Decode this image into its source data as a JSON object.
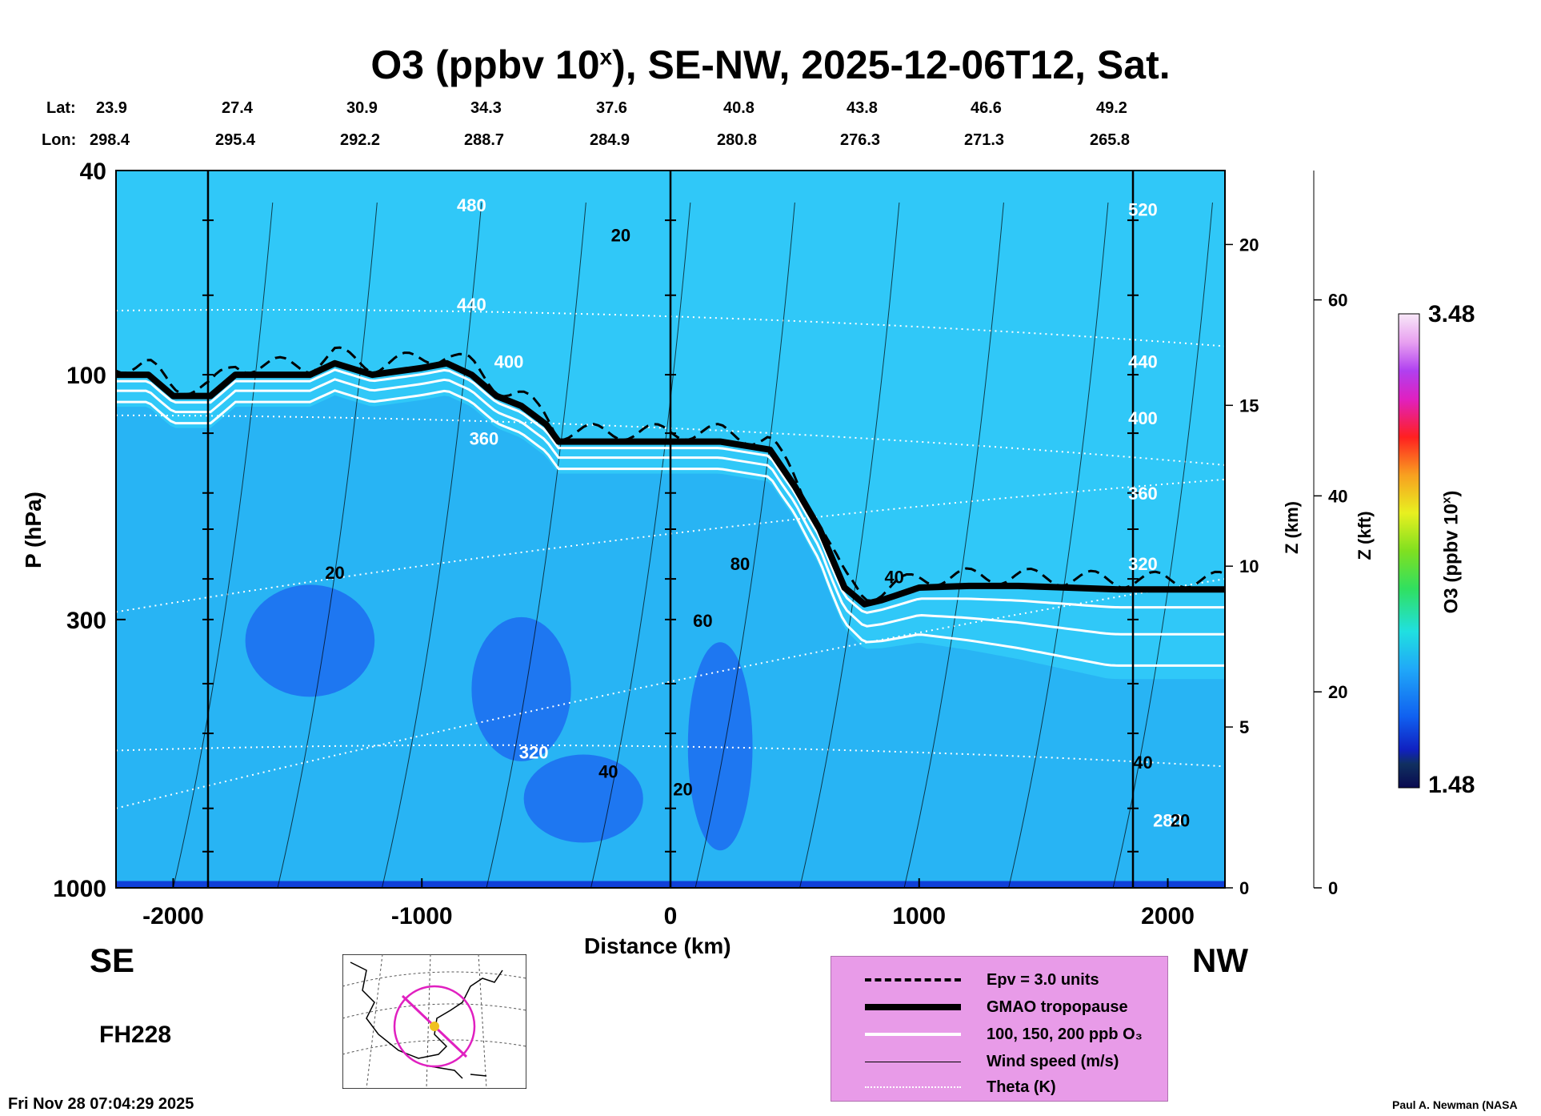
{
  "title": "O3 (ppbv 10^x), SE-NW, 2025-12-06T12, Sat.",
  "title_main": "O3 (ppbv 10",
  "title_sup": "x",
  "title_rest": "), SE-NW, 2025-12-06T12, Sat.",
  "lat_label": "Lat:",
  "lon_label": "Lon:",
  "lats": [
    "23.9",
    "27.4",
    "30.9",
    "34.3",
    "37.6",
    "40.8",
    "43.8",
    "46.6",
    "49.2"
  ],
  "lons": [
    "298.4",
    "295.4",
    "292.2",
    "288.7",
    "284.9",
    "280.8",
    "276.3",
    "271.3",
    "265.8"
  ],
  "left_end": "SE",
  "right_end": "NW",
  "forecast_hour": "FH228",
  "timestamp": "Fri Nov 28 07:04:29 2025",
  "credit": "Paul A. Newman (NASA",
  "chart_data": {
    "type": "heatmap",
    "xlabel": "Distance (km)",
    "ylabel": "P (hPa)",
    "y2label": "Z (km)",
    "y3label": "Z (kft)",
    "colorbar_label": "O3 (ppbv 10^x)",
    "colorbar_label_main": "O3 (ppbv 10",
    "colorbar_label_sup": "x",
    "colorbar_label_rest": ")",
    "xlim": [
      -2230,
      2230
    ],
    "ylim": [
      1000,
      40
    ],
    "y_scale": "log",
    "x_ticks": [
      "-2000",
      "-1000",
      "0",
      "1000",
      "2000"
    ],
    "x_tick_values": [
      -2000,
      -1000,
      0,
      1000,
      2000
    ],
    "y_ticks": [
      "40",
      "100",
      "300",
      "1000"
    ],
    "y_tick_values": [
      40,
      100,
      300,
      1000
    ],
    "z_km_ticks": [
      "0",
      "5",
      "10",
      "15",
      "20"
    ],
    "z_km_values": [
      0,
      5,
      10,
      15,
      20
    ],
    "z_kft_ticks": [
      "0",
      "20",
      "40",
      "60"
    ],
    "z_kft_values": [
      0,
      20,
      40,
      60
    ],
    "colorbar_range": [
      1.48,
      3.48
    ],
    "colorbar_min_label": "1.48",
    "colorbar_max_label": "3.48",
    "tropopause_hpa": [
      [
        -2230,
        100
      ],
      [
        -2100,
        100
      ],
      [
        -2000,
        110
      ],
      [
        -1850,
        110
      ],
      [
        -1750,
        100
      ],
      [
        -1600,
        100
      ],
      [
        -1450,
        100
      ],
      [
        -1350,
        95
      ],
      [
        -1200,
        100
      ],
      [
        -1000,
        97
      ],
      [
        -900,
        95
      ],
      [
        -800,
        100
      ],
      [
        -700,
        110
      ],
      [
        -600,
        115
      ],
      [
        -500,
        125
      ],
      [
        -450,
        135
      ],
      [
        -300,
        135
      ],
      [
        0,
        135
      ],
      [
        200,
        135
      ],
      [
        400,
        140
      ],
      [
        500,
        165
      ],
      [
        600,
        200
      ],
      [
        700,
        260
      ],
      [
        780,
        280
      ],
      [
        850,
        275
      ],
      [
        900,
        270
      ],
      [
        1000,
        260
      ],
      [
        1200,
        258
      ],
      [
        1400,
        258
      ],
      [
        1600,
        260
      ],
      [
        1800,
        262
      ],
      [
        2230,
        262
      ]
    ],
    "theta_labels": [
      {
        "text": "480",
        "x": -800,
        "p": 48
      },
      {
        "text": "440",
        "x": -800,
        "p": 75
      },
      {
        "text": "400",
        "x": -650,
        "p": 97
      },
      {
        "text": "360",
        "x": -750,
        "p": 137
      },
      {
        "text": "320",
        "x": -550,
        "p": 560
      },
      {
        "text": "520",
        "x": 1900,
        "p": 49
      },
      {
        "text": "440",
        "x": 1900,
        "p": 97
      },
      {
        "text": "400",
        "x": 1900,
        "p": 125
      },
      {
        "text": "360",
        "x": 1900,
        "p": 175
      },
      {
        "text": "320",
        "x": 1900,
        "p": 240
      },
      {
        "text": "280",
        "x": 2000,
        "p": 760
      }
    ],
    "wind_labels": [
      {
        "text": "20",
        "x": -200,
        "p": 55
      },
      {
        "text": "20",
        "x": -1350,
        "p": 250
      },
      {
        "text": "80",
        "x": 280,
        "p": 240
      },
      {
        "text": "60",
        "x": 130,
        "p": 310
      },
      {
        "text": "40",
        "x": 900,
        "p": 255
      },
      {
        "text": "40",
        "x": -250,
        "p": 610
      },
      {
        "text": "20",
        "x": 50,
        "p": 660
      },
      {
        "text": "40",
        "x": 1900,
        "p": 585
      },
      {
        "text": "20",
        "x": 2050,
        "p": 760
      }
    ],
    "legend": [
      {
        "label": "Epv = 3.0 units",
        "style": "dashed-black"
      },
      {
        "label": "GMAO tropopause",
        "style": "thick-black"
      },
      {
        "label": "100, 150, 200 ppb O₃",
        "style": "white"
      },
      {
        "label": "Wind speed (m/s)",
        "style": "thin-black"
      },
      {
        "label": "Theta (K)",
        "style": "dotted-white"
      }
    ]
  },
  "colors": {
    "low": "#1040e0",
    "tropo": "#30c8ff",
    "mid": "#40e040",
    "high_red": "#ff2020",
    "top": "#f8e8f8"
  }
}
